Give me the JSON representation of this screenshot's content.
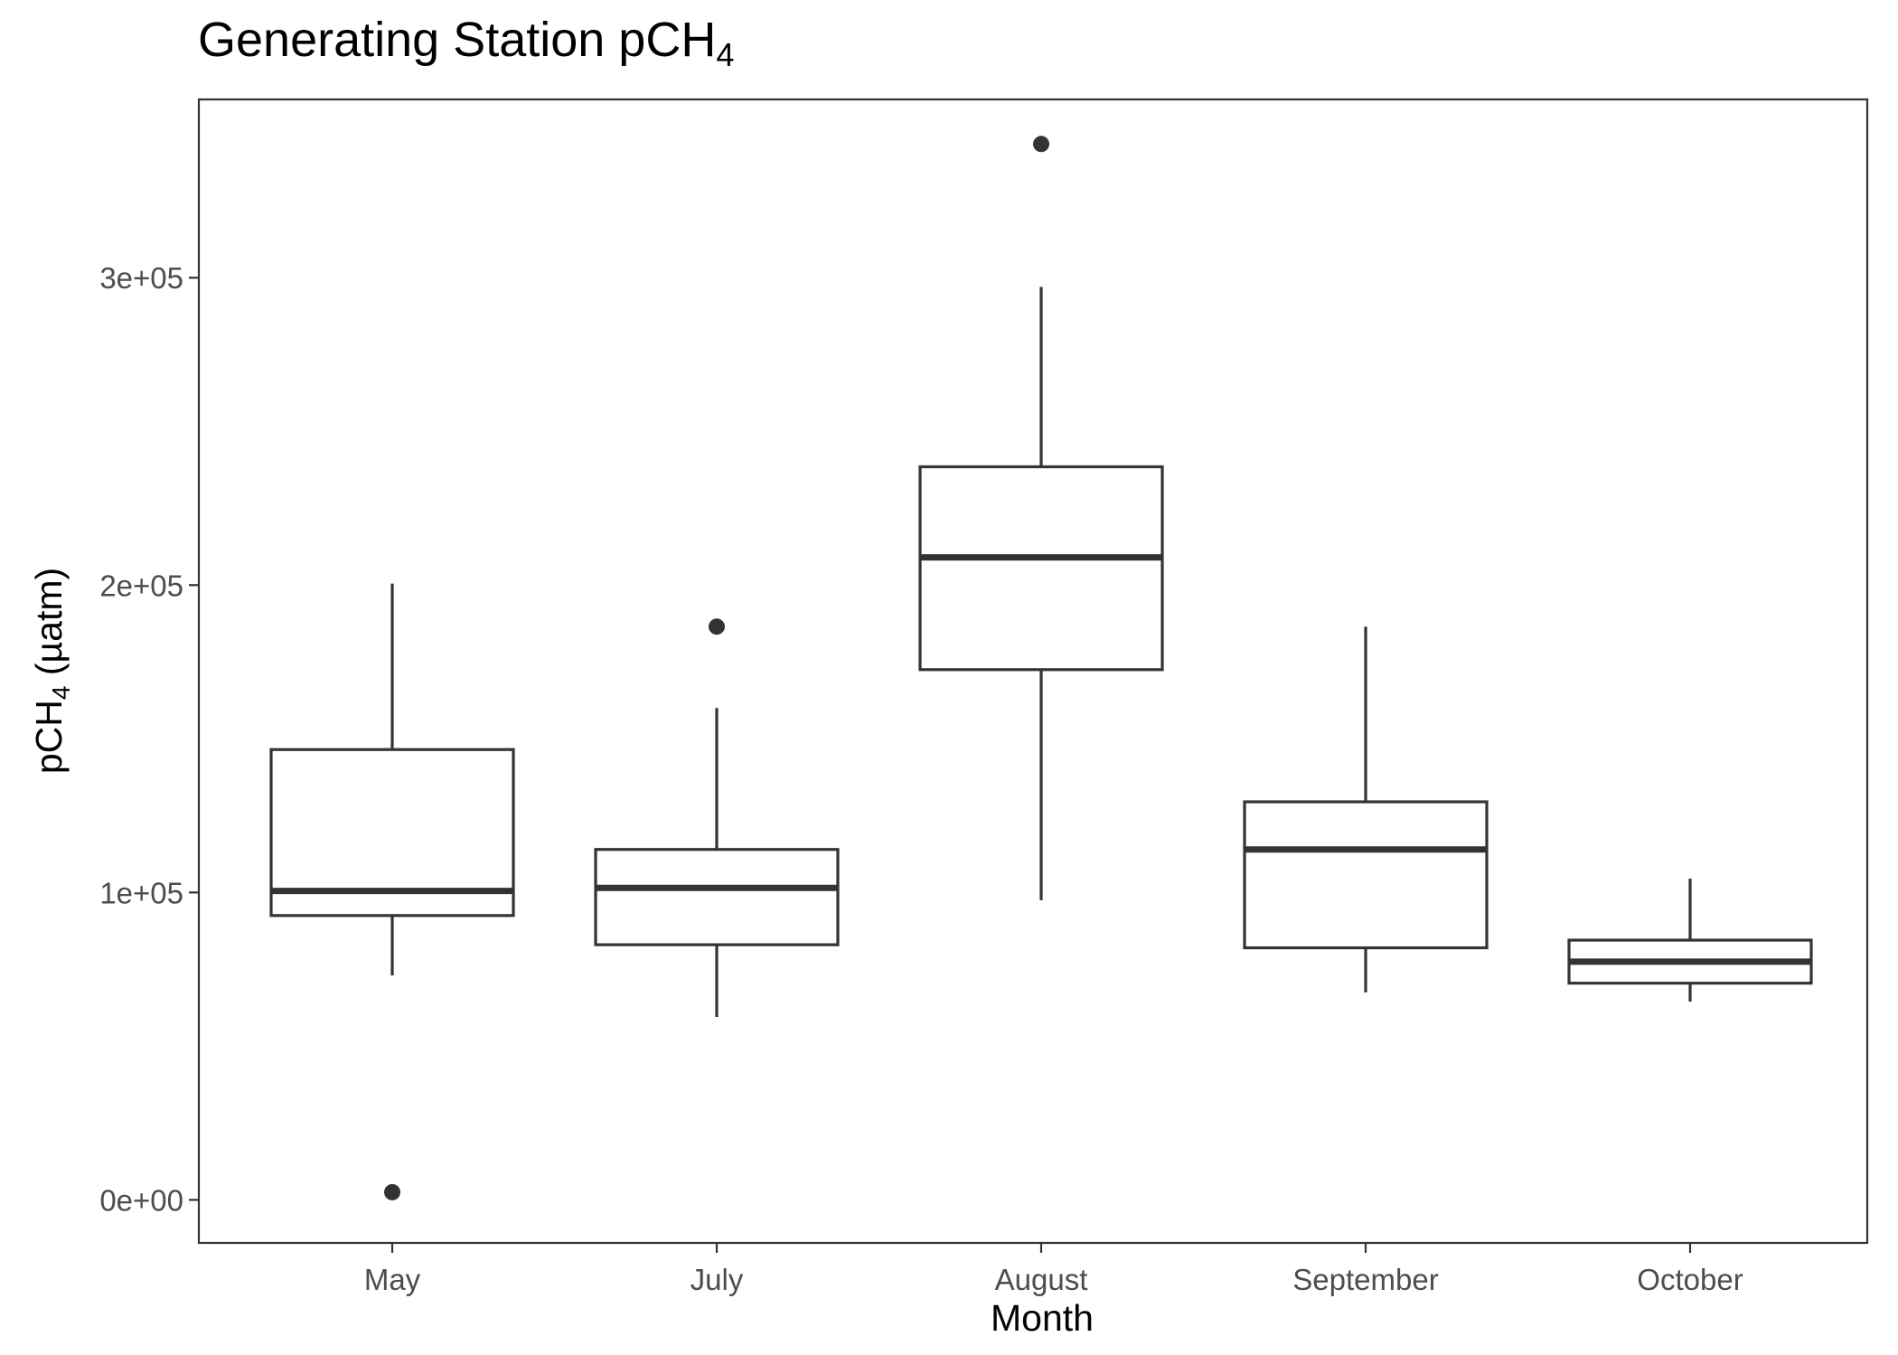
{
  "chart_data": {
    "type": "boxplot",
    "title": {
      "main": "Generating Station pCH",
      "subscript": "4"
    },
    "xlabel": "Month",
    "ylabel": {
      "prefix": "pCH",
      "subscript": "4",
      "suffix": " (µatm)"
    },
    "categories": [
      "May",
      "July",
      "August",
      "September",
      "October"
    ],
    "ylim": [
      -14000,
      358000
    ],
    "y_ticks": [
      {
        "value": 0,
        "label": "0e+00"
      },
      {
        "value": 100000,
        "label": "1e+05"
      },
      {
        "value": 200000,
        "label": "2e+05"
      },
      {
        "value": 300000,
        "label": "3e+05"
      }
    ],
    "boxes": [
      {
        "category": "May",
        "lower_whisker": 73000,
        "q1": 92500,
        "median": 100500,
        "q3": 146500,
        "upper_whisker": 200500,
        "outliers": [
          2500
        ]
      },
      {
        "category": "July",
        "lower_whisker": 59500,
        "q1": 83000,
        "median": 101500,
        "q3": 114000,
        "upper_whisker": 160000,
        "outliers": [
          186500
        ]
      },
      {
        "category": "August",
        "lower_whisker": 97500,
        "q1": 172500,
        "median": 209000,
        "q3": 238500,
        "upper_whisker": 297000,
        "outliers": [
          343500
        ]
      },
      {
        "category": "September",
        "lower_whisker": 67500,
        "q1": 82000,
        "median": 114000,
        "q3": 129500,
        "upper_whisker": 186500,
        "outliers": []
      },
      {
        "category": "October",
        "lower_whisker": 64500,
        "q1": 70500,
        "median": 77500,
        "q3": 84500,
        "upper_whisker": 104500,
        "outliers": []
      }
    ],
    "grid": false,
    "legend": "none"
  }
}
